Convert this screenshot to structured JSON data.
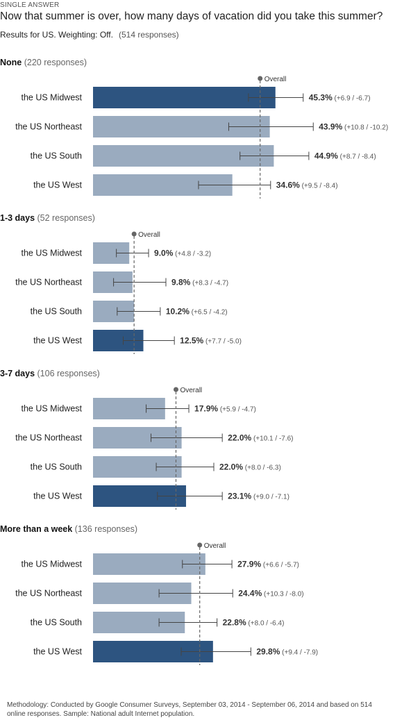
{
  "header": {
    "question_type": "SINGLE ANSWER",
    "question": "Now that summer is over, how many days of vacation did you take this summer?",
    "results_label": "Results for US. Weighting: Off.",
    "responses_label": "(514 responses)"
  },
  "colors": {
    "highlight_bar": "#2d5480",
    "normal_bar": "#9aabbf",
    "overall_marker": "#666666",
    "error_bar": "#444444"
  },
  "overall_label": "Overall",
  "chart_data": [
    {
      "type": "bar",
      "orientation": "horizontal",
      "title": "None",
      "responses": "(220 responses)",
      "overall": 41.5,
      "xlim": [
        0,
        65
      ],
      "categories": [
        "the US Midwest",
        "the US Northeast",
        "the US South",
        "the US West"
      ],
      "values": [
        45.3,
        43.9,
        44.9,
        34.6
      ],
      "error_plus": [
        6.9,
        10.8,
        8.7,
        9.5
      ],
      "error_minus": [
        6.7,
        10.2,
        8.4,
        8.4
      ],
      "value_labels": [
        "45.3%",
        "43.9%",
        "44.9%",
        "34.6%"
      ],
      "error_labels": [
        "(+6.9 / -6.7)",
        "(+10.8 / -10.2)",
        "(+8.7 / -8.4)",
        "(+9.5 / -8.4)"
      ],
      "highlight": [
        true,
        false,
        false,
        false
      ]
    },
    {
      "type": "bar",
      "orientation": "horizontal",
      "title": "1-3 days",
      "responses": "(52 responses)",
      "overall": 10.2,
      "xlim": [
        0,
        65
      ],
      "categories": [
        "the US Midwest",
        "the US Northeast",
        "the US South",
        "the US West"
      ],
      "values": [
        9.0,
        9.8,
        10.2,
        12.5
      ],
      "error_plus": [
        4.8,
        8.3,
        6.5,
        7.7
      ],
      "error_minus": [
        3.2,
        4.7,
        4.2,
        5.0
      ],
      "value_labels": [
        "9.0%",
        "9.8%",
        "10.2%",
        "12.5%"
      ],
      "error_labels": [
        "(+4.8 / -3.2)",
        "(+8.3 / -4.7)",
        "(+6.5 / -4.2)",
        "(+7.7 / -5.0)"
      ],
      "highlight": [
        false,
        false,
        false,
        true
      ]
    },
    {
      "type": "bar",
      "orientation": "horizontal",
      "title": "3-7 days",
      "responses": "(106 responses)",
      "overall": 20.6,
      "xlim": [
        0,
        65
      ],
      "categories": [
        "the US Midwest",
        "the US Northeast",
        "the US South",
        "the US West"
      ],
      "values": [
        17.9,
        22.0,
        22.0,
        23.1
      ],
      "error_plus": [
        5.9,
        10.1,
        8.0,
        9.0
      ],
      "error_minus": [
        4.7,
        7.6,
        6.3,
        7.1
      ],
      "value_labels": [
        "17.9%",
        "22.0%",
        "22.0%",
        "23.1%"
      ],
      "error_labels": [
        "(+5.9 / -4.7)",
        "(+10.1 / -7.6)",
        "(+8.0 / -6.3)",
        "(+9.0 / -7.1)"
      ],
      "highlight": [
        false,
        false,
        false,
        true
      ]
    },
    {
      "type": "bar",
      "orientation": "horizontal",
      "title": "More than a week",
      "responses": "(136 responses)",
      "overall": 26.5,
      "xlim": [
        0,
        65
      ],
      "categories": [
        "the US Midwest",
        "the US Northeast",
        "the US South",
        "the US West"
      ],
      "values": [
        27.9,
        24.4,
        22.8,
        29.8
      ],
      "error_plus": [
        6.6,
        10.3,
        8.0,
        9.4
      ],
      "error_minus": [
        5.7,
        8.0,
        6.4,
        7.9
      ],
      "value_labels": [
        "27.9%",
        "24.4%",
        "22.8%",
        "29.8%"
      ],
      "error_labels": [
        "(+6.6 / -5.7)",
        "(+10.3 / -8.0)",
        "(+8.0 / -6.4)",
        "(+9.4 / -7.9)"
      ],
      "highlight": [
        false,
        false,
        false,
        true
      ]
    }
  ],
  "methodology": "Methodology: Conducted by Google Consumer Surveys, September 03, 2014 - September 06, 2014 and based on 514 online responses. Sample: National adult Internet population."
}
